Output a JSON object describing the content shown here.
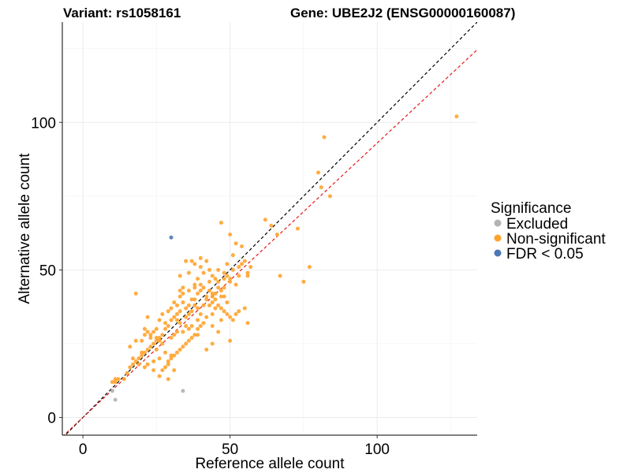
{
  "chart_data": {
    "type": "scatter",
    "title_left": "Variant: rs1058161",
    "title_right": "Gene: UBE2J2 (ENSG00000160087)",
    "xlabel": "Reference allele count",
    "ylabel": "Alternative allele count",
    "xlim": [
      -7,
      134
    ],
    "ylim": [
      -6,
      134
    ],
    "x_ticks": [
      0,
      50,
      100
    ],
    "y_ticks": [
      0,
      50,
      100
    ],
    "grid": true,
    "legend": {
      "title": "Significance",
      "position": "right",
      "entries": [
        {
          "label": "Excluded",
          "color": "#b3b3b3"
        },
        {
          "label": "Non-significant",
          "color": "#ffa32e"
        },
        {
          "label": "FDR < 0.05",
          "color": "#4a78b5"
        }
      ]
    },
    "reference_lines": [
      {
        "slope": 1.0,
        "intercept": 0,
        "color": "#000000",
        "style": "dashed"
      },
      {
        "slope": 0.93,
        "intercept": 0,
        "color": "#e41a1c",
        "style": "dashed"
      }
    ],
    "series": [
      {
        "name": "Excluded",
        "color": "#b3b3b3",
        "points": [
          [
            10,
            9
          ],
          [
            11,
            6
          ],
          [
            34,
            9
          ]
        ]
      },
      {
        "name": "FDR < 0.05",
        "color": "#4a78b5",
        "points": [
          [
            30,
            61
          ]
        ]
      },
      {
        "name": "Non-significant",
        "color": "#ffa32e",
        "points": [
          [
            127,
            102
          ],
          [
            82,
            95
          ],
          [
            80,
            83
          ],
          [
            84,
            75
          ],
          [
            81,
            78
          ],
          [
            73,
            64
          ],
          [
            62,
            67
          ],
          [
            64,
            65
          ],
          [
            66,
            62
          ],
          [
            75,
            46
          ],
          [
            77,
            51
          ],
          [
            67,
            48
          ],
          [
            50,
            62
          ],
          [
            47,
            66
          ],
          [
            52,
            59
          ],
          [
            54,
            58
          ],
          [
            51,
            55
          ],
          [
            49,
            52
          ],
          [
            56,
            49
          ],
          [
            56,
            48
          ],
          [
            50,
            46
          ],
          [
            48,
            44
          ],
          [
            46,
            44
          ],
          [
            44,
            42
          ],
          [
            42,
            41
          ],
          [
            40,
            43
          ],
          [
            39,
            42
          ],
          [
            38,
            40
          ],
          [
            37,
            40
          ],
          [
            36,
            38
          ],
          [
            35,
            37
          ],
          [
            33,
            36
          ],
          [
            32,
            35
          ],
          [
            31,
            34
          ],
          [
            30,
            33
          ],
          [
            29,
            31
          ],
          [
            28,
            30
          ],
          [
            27,
            28
          ],
          [
            26,
            27
          ],
          [
            25,
            26
          ],
          [
            24,
            25
          ],
          [
            23,
            24
          ],
          [
            22,
            23
          ],
          [
            21,
            22
          ],
          [
            20,
            21
          ],
          [
            19,
            20
          ],
          [
            18,
            19
          ],
          [
            17,
            18
          ],
          [
            16,
            17
          ],
          [
            15,
            15
          ],
          [
            14,
            13
          ],
          [
            11,
            12
          ],
          [
            11,
            13
          ],
          [
            10,
            12
          ],
          [
            12,
            13
          ],
          [
            18,
            42
          ],
          [
            22,
            34
          ],
          [
            25,
            27
          ],
          [
            26,
            26
          ],
          [
            23,
            28
          ],
          [
            24,
            19
          ],
          [
            27,
            16
          ],
          [
            28,
            22
          ],
          [
            30,
            21
          ],
          [
            29,
            18
          ],
          [
            26,
            20
          ],
          [
            32,
            38
          ],
          [
            34,
            44
          ],
          [
            33,
            48
          ],
          [
            35,
            53
          ],
          [
            37,
            53
          ],
          [
            36,
            49
          ],
          [
            38,
            45
          ],
          [
            39,
            47
          ],
          [
            41,
            49
          ],
          [
            40,
            51
          ],
          [
            42,
            53
          ],
          [
            43,
            50
          ],
          [
            44,
            48
          ],
          [
            45,
            47
          ],
          [
            46,
            46
          ],
          [
            47,
            43
          ],
          [
            48,
            41
          ],
          [
            49,
            39
          ],
          [
            43,
            38
          ],
          [
            45,
            37
          ],
          [
            44,
            35
          ],
          [
            42,
            34
          ],
          [
            41,
            32
          ],
          [
            40,
            31
          ],
          [
            39,
            30
          ],
          [
            38,
            28
          ],
          [
            37,
            27
          ],
          [
            36,
            26
          ],
          [
            35,
            25
          ],
          [
            34,
            24
          ],
          [
            33,
            23
          ],
          [
            32,
            22
          ],
          [
            31,
            21
          ],
          [
            30,
            20
          ],
          [
            29,
            19
          ],
          [
            28,
            17
          ],
          [
            31,
            16
          ],
          [
            29,
            13
          ],
          [
            26,
            14
          ],
          [
            24,
            16
          ],
          [
            22,
            18
          ],
          [
            21,
            17
          ],
          [
            19,
            18
          ],
          [
            17,
            20
          ],
          [
            20,
            26
          ],
          [
            21,
            30
          ],
          [
            22,
            29
          ],
          [
            23,
            27
          ],
          [
            25,
            30
          ],
          [
            26,
            33
          ],
          [
            27,
            35
          ],
          [
            28,
            32
          ],
          [
            29,
            36
          ],
          [
            30,
            37
          ],
          [
            31,
            39
          ],
          [
            33,
            41
          ],
          [
            34,
            42
          ],
          [
            36,
            43
          ],
          [
            38,
            44
          ],
          [
            40,
            45
          ],
          [
            41,
            44
          ],
          [
            43,
            43
          ],
          [
            44,
            41
          ],
          [
            45,
            40
          ],
          [
            46,
            38
          ],
          [
            47,
            37
          ],
          [
            48,
            36
          ],
          [
            49,
            35
          ],
          [
            50,
            34
          ],
          [
            51,
            33
          ],
          [
            52,
            35
          ],
          [
            53,
            36
          ],
          [
            55,
            37
          ],
          [
            56,
            32
          ],
          [
            50,
            26
          ],
          [
            46,
            29
          ],
          [
            44,
            25
          ],
          [
            42,
            23
          ],
          [
            40,
            35
          ],
          [
            39,
            33
          ],
          [
            37,
            31
          ],
          [
            36,
            30
          ],
          [
            34,
            29
          ],
          [
            33,
            32
          ],
          [
            32,
            33
          ],
          [
            31,
            28
          ],
          [
            35,
            34
          ],
          [
            37,
            36
          ],
          [
            38,
            38
          ],
          [
            39,
            37
          ],
          [
            41,
            38
          ],
          [
            42,
            40
          ],
          [
            44,
            39
          ],
          [
            45,
            42
          ],
          [
            47,
            41
          ],
          [
            48,
            47
          ],
          [
            49,
            48
          ],
          [
            51,
            50
          ],
          [
            53,
            51
          ],
          [
            54,
            52
          ],
          [
            55,
            53
          ],
          [
            57,
            51
          ],
          [
            52,
            45
          ],
          [
            47,
            33
          ],
          [
            44,
            31
          ],
          [
            39,
            28
          ],
          [
            36,
            35
          ],
          [
            34,
            39
          ],
          [
            33,
            43
          ],
          [
            38,
            52
          ],
          [
            40,
            54
          ],
          [
            43,
            46
          ],
          [
            46,
            50
          ],
          [
            48,
            49
          ],
          [
            50,
            47
          ],
          [
            53,
            48
          ],
          [
            24,
            29
          ],
          [
            20,
            22
          ],
          [
            18,
            26
          ],
          [
            16,
            24
          ],
          [
            21,
            28
          ],
          [
            25,
            23
          ],
          [
            27,
            25
          ],
          [
            30,
            27
          ],
          [
            32,
            29
          ],
          [
            35,
            31
          ]
        ]
      }
    ]
  }
}
